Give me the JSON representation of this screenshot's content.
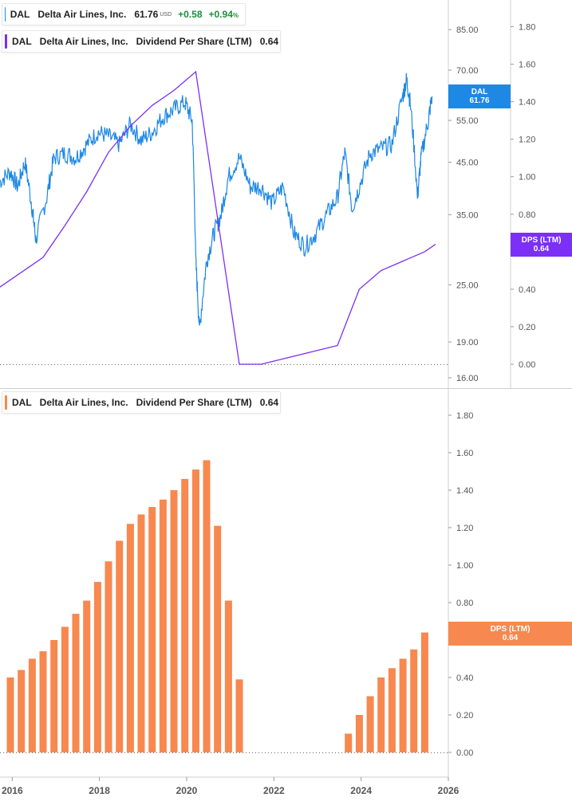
{
  "panels": {
    "top_legend_price": {
      "ticker": "DAL",
      "name": "Delta Air Lines, Inc.",
      "price": "61.76",
      "currency": "USD",
      "change": "+0.58",
      "change_pct": "+0.94",
      "pct_sign": "%"
    },
    "top_legend_dps": {
      "ticker": "DAL",
      "name": "Delta Air Lines, Inc.",
      "metric": "Dividend Per Share (LTM)",
      "value": "0.64"
    },
    "bottom_legend_dps": {
      "ticker": "DAL",
      "name": "Delta Air Lines, Inc.",
      "metric": "Dividend Per Share (LTM)",
      "value": "0.64"
    },
    "price_badge": {
      "label": "DAL",
      "value": "61.76"
    },
    "dps_badge_top": {
      "label": "DPS (LTM)",
      "value": "0.64"
    },
    "dps_badge_bottom": {
      "label": "DPS (LTM)",
      "value": "0.64"
    }
  },
  "colors": {
    "price": "#1e88e5",
    "dps_line": "#7b2ff7",
    "dps_bar": "#f7884f",
    "axis_text": "#555555",
    "grid": "#cccccc"
  },
  "chart_data": [
    {
      "type": "line",
      "title": "",
      "series": [
        {
          "name": "DAL",
          "x": [
            "2015-09",
            "2015-12",
            "2016-02",
            "2016-04",
            "2016-06",
            "2016-07",
            "2016-10",
            "2016-12",
            "2017-03",
            "2017-06",
            "2017-09",
            "2017-12",
            "2018-03",
            "2018-06",
            "2018-09",
            "2018-12",
            "2019-03",
            "2019-06",
            "2019-09",
            "2019-12",
            "2020-02",
            "2020-03",
            "2020-04",
            "2020-06",
            "2020-08",
            "2020-10",
            "2020-12",
            "2021-03",
            "2021-06",
            "2021-09",
            "2021-12",
            "2022-03",
            "2022-06",
            "2022-09",
            "2022-12",
            "2023-03",
            "2023-06",
            "2023-08",
            "2023-10",
            "2023-12",
            "2024-03",
            "2024-06",
            "2024-09",
            "2024-12",
            "2025-01",
            "2025-02",
            "2025-04",
            "2025-05",
            "2025-07",
            "2025-08"
          ],
          "values": [
            41,
            43,
            40,
            45,
            36,
            31,
            38,
            46,
            47,
            46,
            49,
            52,
            51,
            49,
            54,
            50,
            52,
            56,
            58,
            60,
            55,
            28,
            20,
            28,
            32,
            35,
            42,
            46,
            40,
            40,
            37,
            40,
            32,
            30,
            32,
            35,
            38,
            47,
            36,
            40,
            47,
            48,
            49,
            62,
            67,
            60,
            38,
            46,
            55,
            61.76
          ]
        },
        {
          "name": "Dividend Per Share (LTM)",
          "x": [
            "2015-09",
            "2016-06",
            "2016-09",
            "2017-03",
            "2017-09",
            "2018-03",
            "2018-09",
            "2019-03",
            "2019-09",
            "2020-03",
            "2021-03",
            "2021-09",
            "2023-06",
            "2023-12",
            "2024-06",
            "2024-12",
            "2025-06",
            "2025-09"
          ],
          "values": [
            0.41,
            0.53,
            0.57,
            0.74,
            0.92,
            1.13,
            1.27,
            1.38,
            1.46,
            1.56,
            0.0,
            0.0,
            0.1,
            0.4,
            0.5,
            0.55,
            0.6,
            0.64
          ]
        }
      ],
      "y_left": {
        "scale": "log",
        "ticks": [
          "85.00",
          "70.00",
          "55.00",
          "45.00",
          "35.00",
          "25.00",
          "19.00",
          "16.00"
        ]
      },
      "y_right": {
        "ticks": [
          "1.80",
          "1.60",
          "1.40",
          "1.20",
          "1.00",
          "0.80",
          "0.40",
          "0.20",
          "0.00"
        ],
        "ylim": [
          0,
          1.86
        ]
      }
    },
    {
      "type": "bar",
      "title": "",
      "series": [
        {
          "name": "Dividend Per Share (LTM)",
          "x": [
            "2015-12",
            "2016-03",
            "2016-06",
            "2016-09",
            "2016-12",
            "2017-03",
            "2017-06",
            "2017-09",
            "2017-12",
            "2018-03",
            "2018-06",
            "2018-09",
            "2018-12",
            "2019-03",
            "2019-06",
            "2019-09",
            "2019-12",
            "2020-03",
            "2020-06",
            "2020-09",
            "2020-12",
            "2021-03",
            "2021-06",
            "2021-09",
            "2021-12",
            "2022-03",
            "2022-06",
            "2022-09",
            "2022-12",
            "2023-03",
            "2023-06",
            "2023-09",
            "2023-12",
            "2024-03",
            "2024-06",
            "2024-09",
            "2024-12",
            "2025-03",
            "2025-06"
          ],
          "values": [
            0.4,
            0.44,
            0.5,
            0.54,
            0.6,
            0.67,
            0.74,
            0.81,
            0.91,
            1.02,
            1.13,
            1.22,
            1.27,
            1.31,
            1.35,
            1.4,
            1.46,
            1.51,
            1.56,
            1.21,
            0.81,
            0.39,
            0,
            0,
            0,
            0,
            0,
            0,
            0,
            0,
            0,
            0.1,
            0.2,
            0.3,
            0.4,
            0.45,
            0.5,
            0.55,
            0.64
          ]
        }
      ],
      "ylim": [
        0,
        1.86
      ],
      "y_ticks": [
        "1.80",
        "1.60",
        "1.40",
        "1.20",
        "1.00",
        "0.80",
        "0.60",
        "0.40",
        "0.20",
        "0.00"
      ]
    }
  ],
  "x_axis": {
    "ticks": [
      "2016",
      "2018",
      "2020",
      "2022",
      "2024",
      "2026"
    ]
  }
}
